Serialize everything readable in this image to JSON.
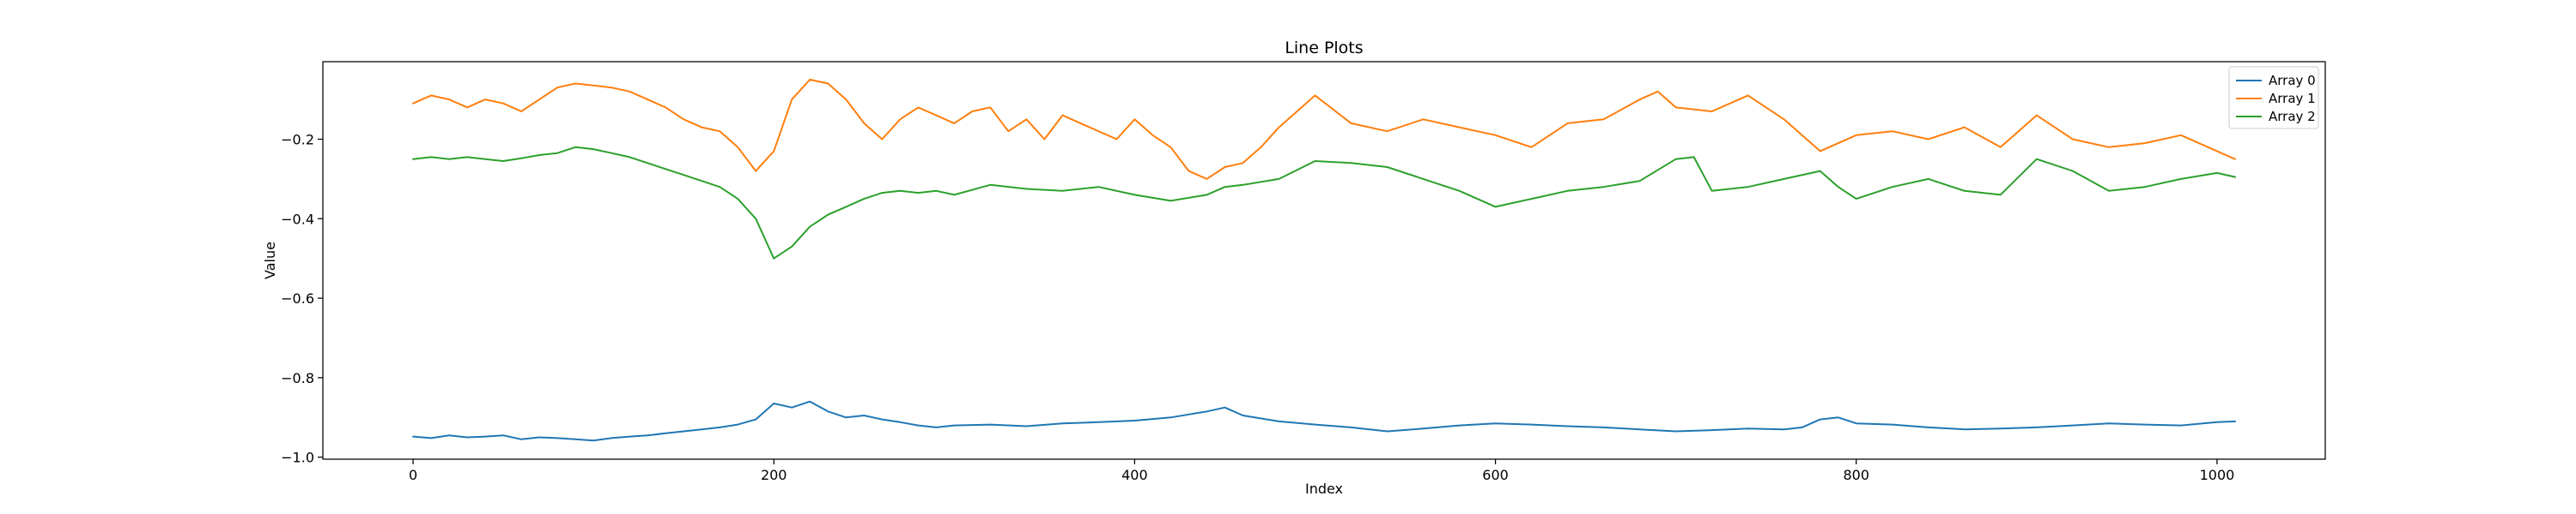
{
  "chart_data": {
    "type": "line",
    "title": "Line Plots",
    "xlabel": "Index",
    "ylabel": "Value",
    "xlim": [
      -50,
      1060
    ],
    "ylim": [
      -1.005,
      -0.005
    ],
    "xticks": [
      0,
      200,
      400,
      600,
      800,
      1000
    ],
    "yticks": [
      -1.0,
      -0.8,
      -0.6,
      -0.4,
      -0.2
    ],
    "grid": false,
    "legend_position": "top-right",
    "series": [
      {
        "name": "Array 0",
        "color": "#1f77b4",
        "x": [
          0,
          10,
          20,
          30,
          40,
          50,
          60,
          70,
          80,
          90,
          100,
          110,
          120,
          130,
          140,
          150,
          160,
          170,
          180,
          190,
          200,
          210,
          220,
          230,
          240,
          250,
          260,
          270,
          280,
          290,
          300,
          320,
          340,
          360,
          380,
          400,
          420,
          440,
          450,
          460,
          480,
          500,
          520,
          540,
          560,
          580,
          600,
          620,
          640,
          660,
          680,
          700,
          720,
          740,
          760,
          770,
          780,
          790,
          800,
          820,
          840,
          860,
          880,
          900,
          920,
          940,
          960,
          980,
          1000,
          1010
        ],
        "y": [
          -0.948,
          -0.952,
          -0.945,
          -0.95,
          -0.948,
          -0.945,
          -0.955,
          -0.95,
          -0.952,
          -0.955,
          -0.958,
          -0.952,
          -0.948,
          -0.945,
          -0.94,
          -0.935,
          -0.93,
          -0.925,
          -0.918,
          -0.905,
          -0.865,
          -0.875,
          -0.86,
          -0.885,
          -0.9,
          -0.895,
          -0.905,
          -0.912,
          -0.92,
          -0.925,
          -0.92,
          -0.918,
          -0.922,
          -0.915,
          -0.912,
          -0.908,
          -0.9,
          -0.885,
          -0.875,
          -0.895,
          -0.91,
          -0.918,
          -0.925,
          -0.935,
          -0.928,
          -0.92,
          -0.915,
          -0.918,
          -0.922,
          -0.925,
          -0.93,
          -0.935,
          -0.932,
          -0.928,
          -0.93,
          -0.925,
          -0.905,
          -0.9,
          -0.915,
          -0.918,
          -0.925,
          -0.93,
          -0.928,
          -0.925,
          -0.92,
          -0.915,
          -0.918,
          -0.92,
          -0.912,
          -0.91
        ]
      },
      {
        "name": "Array 1",
        "color": "#ff7f0e",
        "x": [
          0,
          10,
          20,
          30,
          40,
          50,
          60,
          70,
          80,
          90,
          100,
          110,
          120,
          130,
          140,
          150,
          160,
          170,
          180,
          190,
          200,
          210,
          220,
          230,
          240,
          250,
          260,
          270,
          280,
          290,
          300,
          310,
          320,
          330,
          340,
          350,
          360,
          370,
          380,
          390,
          400,
          410,
          420,
          430,
          440,
          450,
          460,
          470,
          480,
          490,
          500,
          520,
          540,
          560,
          580,
          600,
          620,
          640,
          660,
          680,
          690,
          700,
          720,
          740,
          760,
          780,
          800,
          820,
          840,
          860,
          880,
          900,
          920,
          940,
          960,
          980,
          1000,
          1010
        ],
        "y": [
          -0.11,
          -0.09,
          -0.1,
          -0.12,
          -0.1,
          -0.11,
          -0.13,
          -0.1,
          -0.07,
          -0.06,
          -0.065,
          -0.07,
          -0.08,
          -0.1,
          -0.12,
          -0.15,
          -0.17,
          -0.18,
          -0.22,
          -0.28,
          -0.23,
          -0.1,
          -0.05,
          -0.06,
          -0.1,
          -0.16,
          -0.2,
          -0.15,
          -0.12,
          -0.14,
          -0.16,
          -0.13,
          -0.12,
          -0.18,
          -0.15,
          -0.2,
          -0.14,
          -0.16,
          -0.18,
          -0.2,
          -0.15,
          -0.19,
          -0.22,
          -0.28,
          -0.3,
          -0.27,
          -0.26,
          -0.22,
          -0.17,
          -0.13,
          -0.09,
          -0.16,
          -0.18,
          -0.15,
          -0.17,
          -0.19,
          -0.22,
          -0.16,
          -0.15,
          -0.1,
          -0.08,
          -0.12,
          -0.13,
          -0.09,
          -0.15,
          -0.23,
          -0.19,
          -0.18,
          -0.2,
          -0.17,
          -0.22,
          -0.14,
          -0.2,
          -0.22,
          -0.21,
          -0.19,
          -0.23,
          -0.25
        ]
      },
      {
        "name": "Array 2",
        "color": "#2ca02c",
        "x": [
          0,
          10,
          20,
          30,
          40,
          50,
          60,
          70,
          80,
          90,
          100,
          110,
          120,
          130,
          140,
          150,
          160,
          170,
          180,
          190,
          200,
          210,
          220,
          230,
          240,
          250,
          260,
          270,
          280,
          290,
          300,
          320,
          340,
          360,
          380,
          400,
          420,
          440,
          450,
          460,
          480,
          500,
          520,
          540,
          560,
          580,
          600,
          620,
          640,
          660,
          680,
          700,
          710,
          720,
          740,
          760,
          780,
          790,
          800,
          820,
          840,
          860,
          880,
          900,
          920,
          940,
          960,
          980,
          1000,
          1010
        ],
        "y": [
          -0.25,
          -0.245,
          -0.25,
          -0.245,
          -0.25,
          -0.255,
          -0.248,
          -0.24,
          -0.235,
          -0.22,
          -0.225,
          -0.235,
          -0.245,
          -0.26,
          -0.275,
          -0.29,
          -0.305,
          -0.32,
          -0.35,
          -0.4,
          -0.5,
          -0.47,
          -0.42,
          -0.39,
          -0.37,
          -0.35,
          -0.335,
          -0.33,
          -0.335,
          -0.33,
          -0.34,
          -0.315,
          -0.325,
          -0.33,
          -0.32,
          -0.34,
          -0.355,
          -0.34,
          -0.32,
          -0.315,
          -0.3,
          -0.255,
          -0.26,
          -0.27,
          -0.3,
          -0.33,
          -0.37,
          -0.35,
          -0.33,
          -0.32,
          -0.305,
          -0.25,
          -0.245,
          -0.33,
          -0.32,
          -0.3,
          -0.28,
          -0.32,
          -0.35,
          -0.32,
          -0.3,
          -0.33,
          -0.34,
          -0.25,
          -0.28,
          -0.33,
          -0.32,
          -0.3,
          -0.285,
          -0.295
        ]
      }
    ]
  }
}
